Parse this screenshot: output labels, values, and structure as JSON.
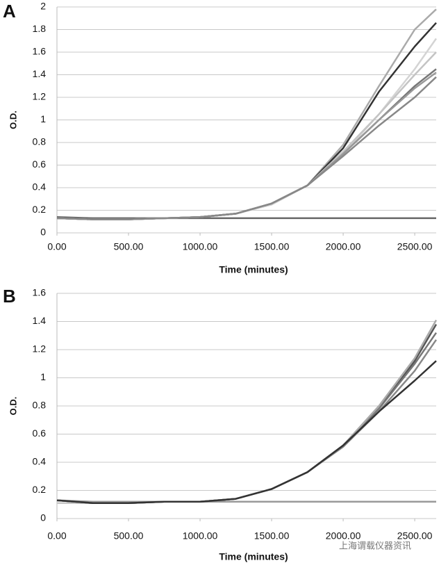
{
  "chart_data": [
    {
      "type": "line",
      "label": "A",
      "ylabel": "O.D.",
      "xlabel": "Time (minutes)",
      "x": [
        0,
        250,
        500,
        750,
        1000,
        1250,
        1500,
        1750,
        2000,
        2250,
        2500,
        2650
      ],
      "series": [
        {
          "color": "#666666",
          "values": [
            0.14,
            0.13,
            0.13,
            0.13,
            0.13,
            0.13,
            0.13,
            0.13,
            0.13,
            0.13,
            0.13,
            0.13
          ]
        },
        {
          "color": "#aaaaaa",
          "values": [
            0.13,
            0.12,
            0.12,
            0.13,
            0.14,
            0.17,
            0.26,
            0.42,
            0.78,
            1.3,
            1.8,
            1.98
          ]
        },
        {
          "color": "#333333",
          "values": [
            0.13,
            0.12,
            0.12,
            0.13,
            0.14,
            0.17,
            0.26,
            0.42,
            0.75,
            1.25,
            1.65,
            1.86
          ]
        },
        {
          "color": "#d4d4d4",
          "values": [
            0.13,
            0.12,
            0.12,
            0.13,
            0.14,
            0.17,
            0.25,
            0.42,
            0.7,
            1.05,
            1.45,
            1.72
          ]
        },
        {
          "color": "#c4c4c4",
          "values": [
            0.13,
            0.12,
            0.12,
            0.13,
            0.14,
            0.17,
            0.26,
            0.42,
            0.72,
            1.05,
            1.4,
            1.6
          ]
        },
        {
          "color": "#777777",
          "values": [
            0.13,
            0.12,
            0.12,
            0.13,
            0.14,
            0.17,
            0.26,
            0.42,
            0.7,
            1.0,
            1.3,
            1.45
          ]
        },
        {
          "color": "#999999",
          "values": [
            0.13,
            0.12,
            0.12,
            0.13,
            0.14,
            0.17,
            0.26,
            0.42,
            0.7,
            1.0,
            1.28,
            1.42
          ]
        },
        {
          "color": "#888888",
          "values": [
            0.13,
            0.12,
            0.12,
            0.13,
            0.14,
            0.17,
            0.26,
            0.42,
            0.68,
            0.95,
            1.2,
            1.38
          ]
        }
      ],
      "xlim": [
        0,
        2650
      ],
      "ylim": [
        0,
        2
      ],
      "xticks": [
        {
          "value": 0,
          "label": "0.00"
        },
        {
          "value": 500,
          "label": "500.00"
        },
        {
          "value": 1000,
          "label": "1000.00"
        },
        {
          "value": 1500,
          "label": "1500.00"
        },
        {
          "value": 2000,
          "label": "2000.00"
        },
        {
          "value": 2500,
          "label": "2500.00"
        }
      ],
      "yticks": [
        0,
        0.2,
        0.4,
        0.6,
        0.8,
        1,
        1.2,
        1.4,
        1.6,
        1.8,
        2
      ],
      "grid": true
    },
    {
      "type": "line",
      "label": "B",
      "ylabel": "O.D.",
      "xlabel": "Time (minutes)",
      "x": [
        0,
        250,
        500,
        750,
        1000,
        1250,
        1500,
        1750,
        2000,
        2250,
        2500,
        2650
      ],
      "series": [
        {
          "color": "#c8c8c8",
          "values": [
            0.11,
            0.11,
            0.12,
            0.12,
            0.12,
            0.12,
            0.12,
            0.12,
            0.12,
            0.12,
            0.12,
            0.12
          ]
        },
        {
          "color": "#999999",
          "values": [
            0.13,
            0.12,
            0.12,
            0.12,
            0.12,
            0.12,
            0.12,
            0.12,
            0.12,
            0.12,
            0.12,
            0.12
          ]
        },
        {
          "color": "#555555",
          "values": [
            0.13,
            0.11,
            0.11,
            0.12,
            0.12,
            0.14,
            0.21,
            0.33,
            0.52,
            0.78,
            1.12,
            1.38
          ]
        },
        {
          "color": "#777777",
          "values": [
            0.13,
            0.11,
            0.11,
            0.12,
            0.12,
            0.14,
            0.21,
            0.33,
            0.52,
            0.78,
            1.1,
            1.32
          ]
        },
        {
          "color": "#aaaaaa",
          "values": [
            0.13,
            0.11,
            0.11,
            0.12,
            0.12,
            0.14,
            0.21,
            0.33,
            0.52,
            0.8,
            1.14,
            1.41
          ]
        },
        {
          "color": "#888888",
          "values": [
            0.13,
            0.11,
            0.11,
            0.12,
            0.12,
            0.14,
            0.21,
            0.33,
            0.51,
            0.76,
            1.05,
            1.27
          ]
        },
        {
          "color": "#333333",
          "values": [
            0.13,
            0.11,
            0.11,
            0.12,
            0.12,
            0.14,
            0.21,
            0.33,
            0.52,
            0.76,
            0.98,
            1.12
          ]
        }
      ],
      "xlim": [
        0,
        2650
      ],
      "ylim": [
        0,
        1.6
      ],
      "xticks": [
        {
          "value": 0,
          "label": "0.00"
        },
        {
          "value": 500,
          "label": "500.00"
        },
        {
          "value": 1000,
          "label": "1000.00"
        },
        {
          "value": 1500,
          "label": "1500.00"
        },
        {
          "value": 2000,
          "label": "2000.00"
        },
        {
          "value": 2500,
          "label": "2500.00"
        }
      ],
      "yticks": [
        0,
        0.2,
        0.4,
        0.6,
        0.8,
        1,
        1.2,
        1.4,
        1.6
      ],
      "grid": true
    }
  ],
  "watermark": "上海谓载仪器资讯"
}
